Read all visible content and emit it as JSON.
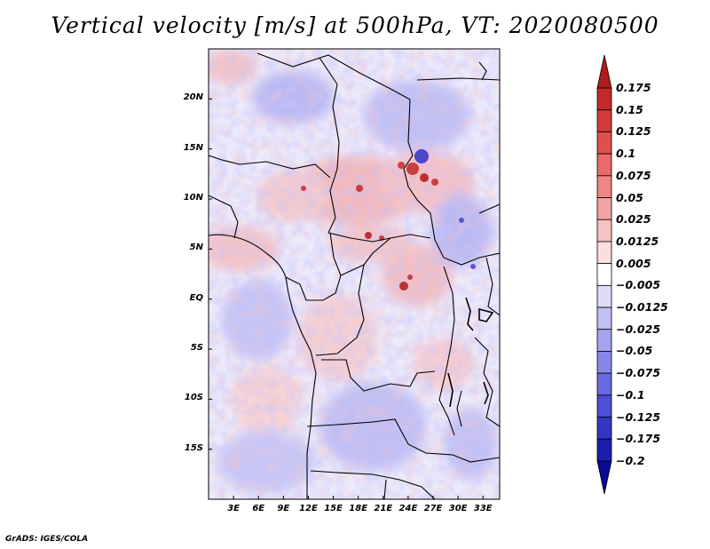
{
  "title": "Vertical velocity [m/s] at 500hPa, VT: 2020080500",
  "credit": "GrADS: IGES/COLA",
  "map": {
    "variable": "Vertical velocity",
    "units": "m/s",
    "level": "500hPa",
    "valid_time": "2020080500",
    "lon_range": [
      0,
      35
    ],
    "lat_range": [
      -20,
      25
    ],
    "lat_labels": [
      "20N",
      "15N",
      "10N",
      "5N",
      "EQ",
      "5S",
      "10S",
      "15S"
    ],
    "lat_values": [
      20,
      15,
      10,
      5,
      0,
      -5,
      -10,
      -15
    ],
    "lon_labels": [
      "3E",
      "6E",
      "9E",
      "12E",
      "15E",
      "18E",
      "21E",
      "24E",
      "27E",
      "30E",
      "33E"
    ],
    "lon_values": [
      3,
      6,
      9,
      12,
      15,
      18,
      21,
      24,
      27,
      30,
      33
    ]
  },
  "colorbar": {
    "labels": [
      "0.175",
      "0.15",
      "0.125",
      "0.1",
      "0.075",
      "0.05",
      "0.025",
      "0.0125",
      "0.005",
      "−0.005",
      "−0.0125",
      "−0.025",
      "−0.05",
      "−0.075",
      "−0.1",
      "−0.125",
      "−0.175",
      "−0.2"
    ],
    "colors": [
      "#b01c1c",
      "#c42a2a",
      "#d43a3a",
      "#e04e4e",
      "#e86a6a",
      "#ee8686",
      "#f4a4a4",
      "#f8c2c2",
      "#fcdede",
      "#ffffff",
      "#dcdcfa",
      "#c0c0f4",
      "#a4a4ee",
      "#8686e8",
      "#6a6ae0",
      "#4e4ed6",
      "#3434c8",
      "#1c1cb0",
      "#0a0a94"
    ]
  }
}
